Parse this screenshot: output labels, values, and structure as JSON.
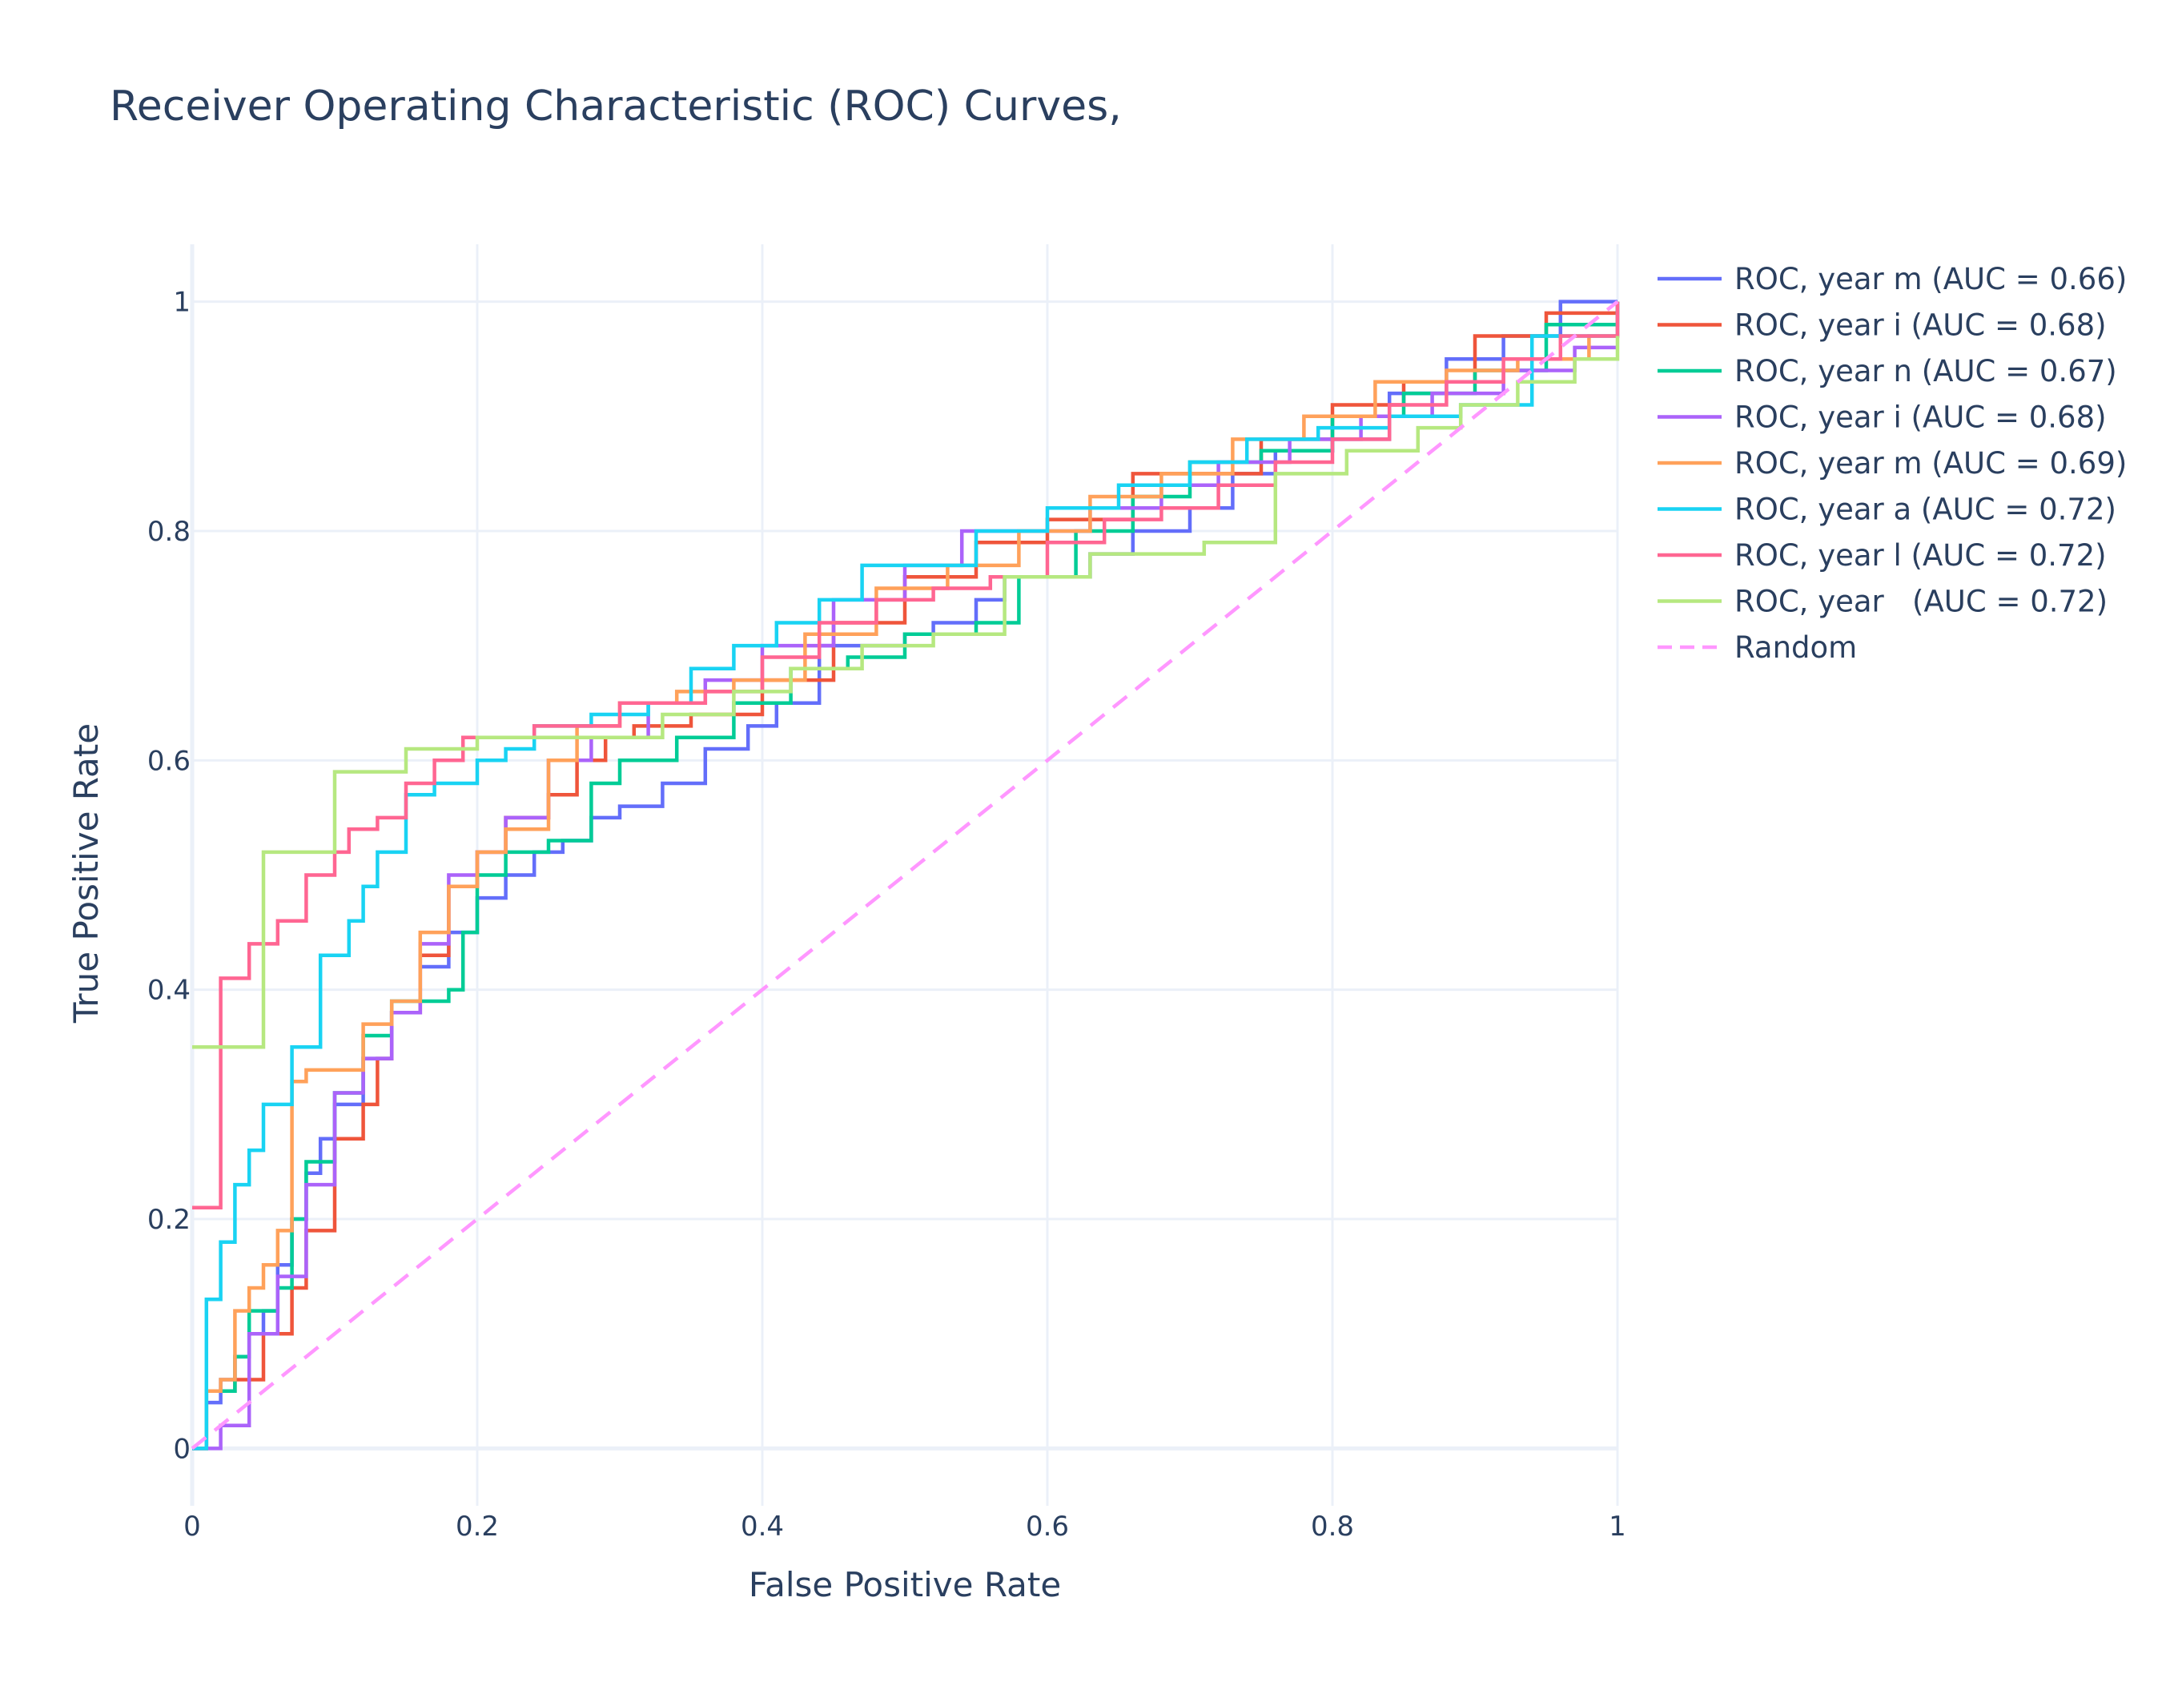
{
  "chart_data": {
    "type": "line",
    "title": "Receiver Operating Characteristic (ROC) Curves,",
    "xlabel": "False Positive Rate",
    "ylabel": "True Positive Rate",
    "xlim": [
      0,
      1
    ],
    "ylim": [
      -0.05,
      1.05
    ],
    "xticks": [
      0,
      0.2,
      0.4,
      0.6,
      0.8,
      1
    ],
    "xtick_labels": [
      "0",
      "0.2",
      "0.4",
      "0.6",
      "0.8",
      "1"
    ],
    "yticks": [
      0,
      0.2,
      0.4,
      0.6,
      0.8,
      1
    ],
    "ytick_labels": [
      "0",
      "0.2",
      "0.4",
      "0.6",
      "0.8",
      "1"
    ],
    "grid": true,
    "legend_position": "top-right, outside plot",
    "series": [
      {
        "name": "ROC, year m (AUC = 0.66)",
        "color": "#636efa",
        "dash": "solid",
        "step": true,
        "x": [
          0,
          0.01,
          0.02,
          0.03,
          0.04,
          0.05,
          0.06,
          0.07,
          0.08,
          0.09,
          0.1,
          0.12,
          0.14,
          0.16,
          0.18,
          0.2,
          0.22,
          0.24,
          0.26,
          0.28,
          0.3,
          0.33,
          0.36,
          0.39,
          0.41,
          0.44,
          0.47,
          0.5,
          0.52,
          0.55,
          0.57,
          0.6,
          0.63,
          0.66,
          0.7,
          0.73,
          0.76,
          0.8,
          0.84,
          0.88,
          0.92,
          0.96,
          1
        ],
        "y": [
          0,
          0.04,
          0.06,
          0.08,
          0.1,
          0.12,
          0.16,
          0.2,
          0.24,
          0.27,
          0.3,
          0.34,
          0.38,
          0.42,
          0.45,
          0.48,
          0.5,
          0.52,
          0.53,
          0.55,
          0.56,
          0.58,
          0.61,
          0.63,
          0.65,
          0.7,
          0.7,
          0.71,
          0.72,
          0.74,
          0.76,
          0.76,
          0.78,
          0.8,
          0.82,
          0.85,
          0.87,
          0.88,
          0.92,
          0.95,
          0.97,
          1,
          1
        ]
      },
      {
        "name": "ROC, year i (AUC = 0.68)",
        "color": "#ef553b",
        "dash": "solid",
        "step": true,
        "x": [
          0,
          0.01,
          0.03,
          0.05,
          0.07,
          0.08,
          0.1,
          0.12,
          0.13,
          0.14,
          0.16,
          0.18,
          0.2,
          0.22,
          0.25,
          0.27,
          0.29,
          0.31,
          0.35,
          0.4,
          0.45,
          0.5,
          0.55,
          0.6,
          0.66,
          0.7,
          0.75,
          0.8,
          0.85,
          0.9,
          0.95,
          1
        ],
        "y": [
          0,
          0.05,
          0.06,
          0.1,
          0.14,
          0.19,
          0.27,
          0.3,
          0.34,
          0.38,
          0.43,
          0.49,
          0.52,
          0.55,
          0.57,
          0.6,
          0.62,
          0.63,
          0.64,
          0.67,
          0.72,
          0.76,
          0.79,
          0.81,
          0.85,
          0.85,
          0.88,
          0.91,
          0.93,
          0.97,
          0.99,
          1
        ]
      },
      {
        "name": "ROC, year n (AUC = 0.67)",
        "color": "#00cc96",
        "dash": "solid",
        "step": true,
        "x": [
          0,
          0.01,
          0.03,
          0.04,
          0.06,
          0.07,
          0.08,
          0.1,
          0.12,
          0.14,
          0.16,
          0.18,
          0.19,
          0.2,
          0.22,
          0.25,
          0.28,
          0.3,
          0.34,
          0.38,
          0.42,
          0.46,
          0.5,
          0.55,
          0.58,
          0.62,
          0.66,
          0.7,
          0.75,
          0.8,
          0.85,
          0.9,
          0.95,
          1
        ],
        "y": [
          0,
          0.05,
          0.08,
          0.12,
          0.14,
          0.2,
          0.25,
          0.31,
          0.36,
          0.39,
          0.39,
          0.4,
          0.45,
          0.5,
          0.52,
          0.53,
          0.58,
          0.6,
          0.62,
          0.65,
          0.68,
          0.69,
          0.71,
          0.72,
          0.76,
          0.8,
          0.83,
          0.86,
          0.87,
          0.9,
          0.92,
          0.94,
          0.98,
          1
        ]
      },
      {
        "name": "ROC, year i (AUC = 0.68)",
        "color": "#ab63fa",
        "dash": "solid",
        "step": true,
        "x": [
          0,
          0.02,
          0.04,
          0.06,
          0.08,
          0.1,
          0.12,
          0.14,
          0.16,
          0.18,
          0.2,
          0.22,
          0.25,
          0.28,
          0.32,
          0.36,
          0.4,
          0.45,
          0.5,
          0.54,
          0.58,
          0.63,
          0.68,
          0.72,
          0.77,
          0.82,
          0.87,
          0.92,
          0.97,
          1
        ],
        "y": [
          0,
          0.02,
          0.1,
          0.15,
          0.23,
          0.31,
          0.34,
          0.38,
          0.44,
          0.5,
          0.52,
          0.55,
          0.6,
          0.62,
          0.65,
          0.67,
          0.7,
          0.74,
          0.77,
          0.8,
          0.8,
          0.82,
          0.84,
          0.86,
          0.88,
          0.9,
          0.92,
          0.94,
          0.96,
          0.96
        ]
      },
      {
        "name": "ROC, year m (AUC = 0.69)",
        "color": "#ffa15a",
        "dash": "solid",
        "step": true,
        "x": [
          0,
          0.01,
          0.02,
          0.03,
          0.04,
          0.05,
          0.06,
          0.07,
          0.08,
          0.1,
          0.12,
          0.14,
          0.16,
          0.18,
          0.2,
          0.22,
          0.25,
          0.27,
          0.3,
          0.34,
          0.38,
          0.43,
          0.48,
          0.53,
          0.58,
          0.63,
          0.68,
          0.73,
          0.78,
          0.83,
          0.88,
          0.93,
          0.98,
          1
        ],
        "y": [
          0,
          0.05,
          0.06,
          0.12,
          0.14,
          0.16,
          0.19,
          0.32,
          0.33,
          0.33,
          0.37,
          0.39,
          0.45,
          0.49,
          0.52,
          0.54,
          0.6,
          0.63,
          0.65,
          0.66,
          0.67,
          0.71,
          0.75,
          0.77,
          0.8,
          0.83,
          0.85,
          0.88,
          0.9,
          0.93,
          0.94,
          0.95,
          0.97,
          0.99
        ]
      },
      {
        "name": "ROC, year a (AUC = 0.72)",
        "color": "#19d3f3",
        "dash": "solid",
        "step": true,
        "x": [
          0,
          0.01,
          0.02,
          0.03,
          0.04,
          0.05,
          0.07,
          0.09,
          0.11,
          0.12,
          0.13,
          0.15,
          0.17,
          0.2,
          0.22,
          0.24,
          0.28,
          0.32,
          0.35,
          0.38,
          0.41,
          0.44,
          0.47,
          0.51,
          0.55,
          0.6,
          0.65,
          0.7,
          0.74,
          0.79,
          0.84,
          0.89,
          0.94,
          1
        ],
        "y": [
          0,
          0.13,
          0.18,
          0.23,
          0.26,
          0.3,
          0.35,
          0.43,
          0.46,
          0.49,
          0.52,
          0.57,
          0.58,
          0.6,
          0.61,
          0.63,
          0.64,
          0.65,
          0.68,
          0.7,
          0.72,
          0.74,
          0.77,
          0.77,
          0.8,
          0.82,
          0.84,
          0.86,
          0.88,
          0.89,
          0.9,
          0.91,
          0.97,
          1
        ]
      },
      {
        "name": "ROC, year l (AUC = 0.72)",
        "color": "#ff6692",
        "dash": "solid",
        "step": true,
        "x": [
          0,
          0.02,
          0.04,
          0.06,
          0.08,
          0.1,
          0.11,
          0.13,
          0.15,
          0.17,
          0.19,
          0.24,
          0.3,
          0.36,
          0.4,
          0.44,
          0.48,
          0.52,
          0.56,
          0.6,
          0.64,
          0.68,
          0.72,
          0.76,
          0.8,
          0.84,
          0.88,
          0.92,
          0.96,
          1
        ],
        "y": [
          0.21,
          0.41,
          0.44,
          0.46,
          0.5,
          0.52,
          0.54,
          0.55,
          0.58,
          0.6,
          0.62,
          0.63,
          0.65,
          0.66,
          0.69,
          0.72,
          0.74,
          0.75,
          0.76,
          0.79,
          0.81,
          0.82,
          0.84,
          0.86,
          0.88,
          0.91,
          0.93,
          0.95,
          0.97,
          1
        ]
      },
      {
        "name": "ROC, year   (AUC = 0.72)",
        "color": "#b6e880",
        "dash": "solid",
        "step": true,
        "x": [
          0,
          0.05,
          0.1,
          0.15,
          0.2,
          0.24,
          0.33,
          0.38,
          0.42,
          0.47,
          0.52,
          0.57,
          0.63,
          0.71,
          0.76,
          0.81,
          0.86,
          0.89,
          0.93,
          0.97,
          1
        ],
        "y": [
          0.35,
          0.52,
          0.59,
          0.61,
          0.62,
          0.62,
          0.64,
          0.66,
          0.68,
          0.7,
          0.71,
          0.76,
          0.78,
          0.79,
          0.85,
          0.87,
          0.89,
          0.91,
          0.93,
          0.95,
          0.97
        ]
      },
      {
        "name": "Random",
        "color": "#ff97ff",
        "dash": "dash",
        "step": false,
        "x": [
          0,
          1
        ],
        "y": [
          0,
          1
        ]
      }
    ]
  }
}
